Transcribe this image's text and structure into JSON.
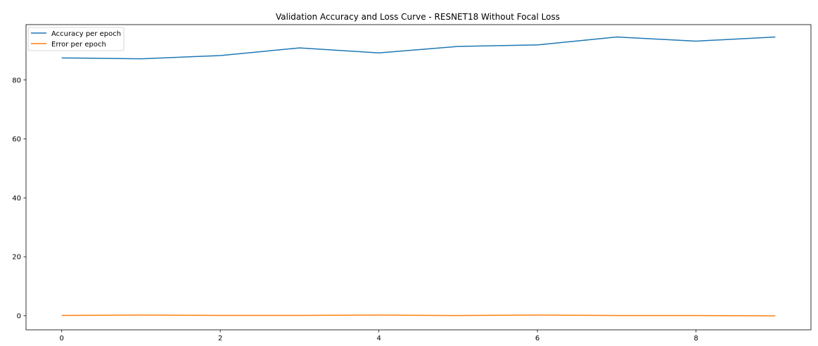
{
  "chart_data": {
    "type": "line",
    "title": "Validation Accuracy and Loss Curve - RESNET18 Without Focal Loss",
    "xlabel": "",
    "ylabel": "",
    "x": [
      0,
      1,
      2,
      3,
      4,
      5,
      6,
      7,
      8,
      9
    ],
    "xlim": [
      -0.45,
      9.45
    ],
    "ylim": [
      -4.8,
      98.8
    ],
    "xticks": [
      0,
      2,
      4,
      6,
      8
    ],
    "yticks": [
      0,
      20,
      40,
      60,
      80
    ],
    "grid": false,
    "legend_position": "upper left",
    "series": [
      {
        "name": "Accuracy per epoch",
        "color": "#1f77b4",
        "values": [
          87.5,
          87.2,
          88.3,
          90.9,
          89.2,
          91.4,
          91.9,
          94.6,
          93.2,
          94.6
        ]
      },
      {
        "name": "Error per epoch",
        "color": "#ff7f0e",
        "values": [
          0.1,
          0.2,
          0.1,
          0.1,
          0.2,
          0.05,
          0.2,
          0.05,
          0.05,
          -0.05
        ]
      }
    ]
  }
}
